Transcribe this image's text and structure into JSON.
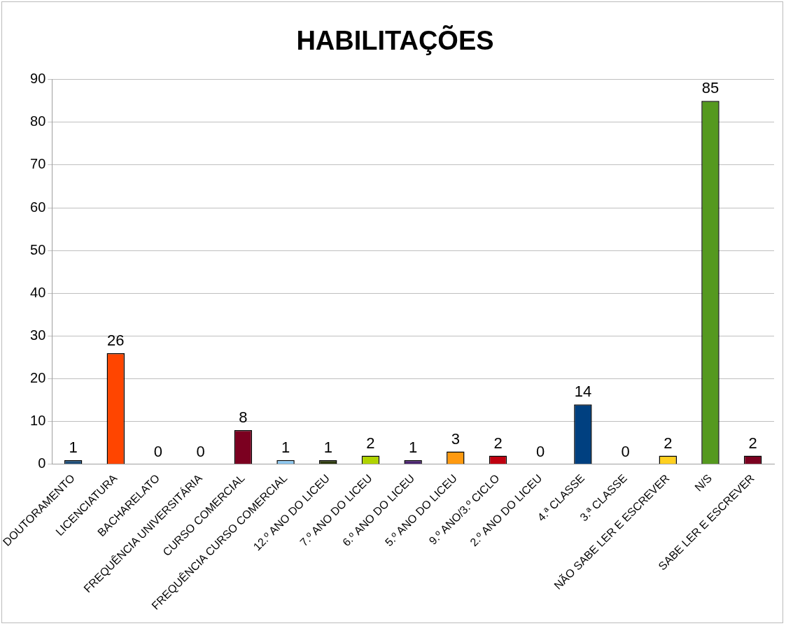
{
  "chart_data": {
    "type": "bar",
    "title": "HABILITAÇÕES",
    "categories": [
      "DOUTORAMENTO",
      "LICENCIATURA",
      "BACHARELATO",
      "FREQUÊNCIA UNIVERSITÁRIA",
      "CURSO COMERCIAL",
      "FREQUÊNCIA CURSO COMERCIAL",
      "12.º ANO DO LICEU",
      "7.º ANO DO LICEU",
      "6.º ANO DO LICEU",
      "5.º ANO DO LICEU",
      "9.º ANO/3.º CICLO",
      "2.º ANO DO LICEU",
      "4.ª CLASSE",
      "3.ª CLASSE",
      "NÃO SABE LER E ESCREVER",
      "N/S",
      "SABE LER E ESCREVER"
    ],
    "values": [
      1,
      26,
      0,
      0,
      8,
      1,
      1,
      2,
      1,
      3,
      2,
      0,
      14,
      0,
      2,
      85,
      2
    ],
    "colors": [
      "#1f4e79",
      "#ff4500",
      "#4f81bd",
      "#4f81bd",
      "#7b0020",
      "#8ec8f0",
      "#2e3b10",
      "#b0d400",
      "#4b2570",
      "#ff9a10",
      "#c00010",
      "#4f81bd",
      "#004080",
      "#4f81bd",
      "#ffd020",
      "#55991f",
      "#7b0020"
    ],
    "ylim": [
      0,
      90
    ],
    "yticks": [
      0,
      10,
      20,
      30,
      40,
      50,
      60,
      70,
      80,
      90
    ],
    "grid": "y",
    "data_labels": true,
    "legend": false
  }
}
